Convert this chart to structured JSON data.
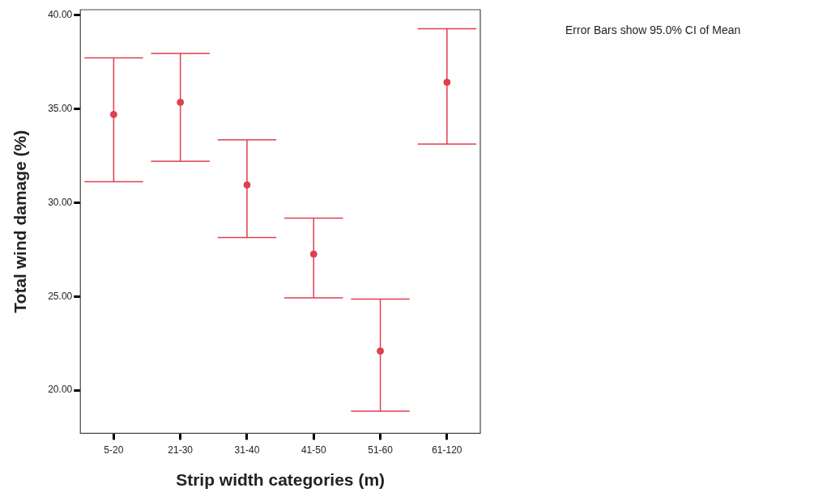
{
  "chart_data": {
    "type": "scatter",
    "xlabel": "Strip width categories (m)",
    "ylabel": "Total wind damage (%)",
    "annotations": [
      "Error Bars show 95.0% CI of Mean"
    ],
    "categories": [
      "5-20",
      "21-30",
      "31-40",
      "41-50",
      "51-60",
      "61-120"
    ],
    "color": "#e0404e",
    "values": [
      34.71,
      35.36,
      30.95,
      27.26,
      22.09,
      36.43
    ],
    "errors": [
      [
        31.12,
        37.73
      ],
      [
        32.21,
        37.97
      ],
      [
        28.15,
        33.36
      ],
      [
        24.93,
        29.18
      ],
      [
        18.88,
        24.86
      ],
      [
        33.13,
        39.28
      ]
    ],
    "ylim": [
      17.7,
      40.3
    ],
    "yticks": [
      {
        "value": 20,
        "label": "20.00"
      },
      {
        "value": 25,
        "label": "25.00"
      },
      {
        "value": 30,
        "label": "30.00"
      },
      {
        "value": 35,
        "label": "35.00"
      },
      {
        "value": 40,
        "label": "40.00"
      }
    ],
    "grid": false,
    "legend": false,
    "marker": "circle"
  }
}
